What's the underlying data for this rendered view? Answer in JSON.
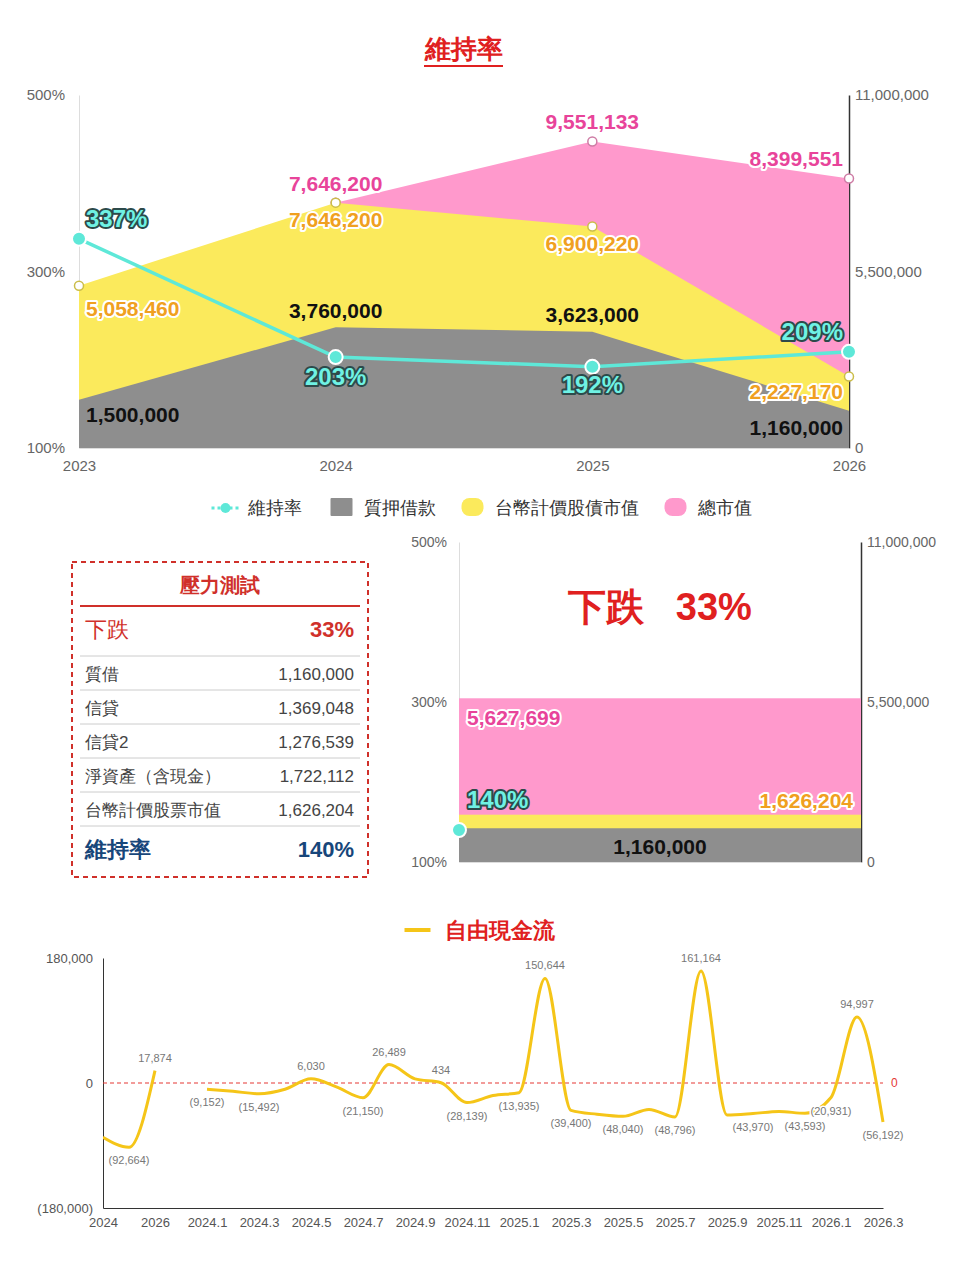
{
  "chart_data": [
    {
      "type": "area",
      "title": "維持率",
      "categories": [
        "2023",
        "2024",
        "2025",
        "2026"
      ],
      "series": [
        {
          "name": "維持率",
          "type": "line",
          "color": "#5ee8d8",
          "marker": "circle",
          "axis": "y",
          "values": [
            337,
            203,
            192,
            209
          ],
          "value_labels": [
            "337%",
            "203%",
            "192%",
            "209%"
          ]
        },
        {
          "name": "質押借款",
          "type": "area",
          "color": "#8e8e8e",
          "axis": "y2",
          "values": [
            1500000,
            3760000,
            3623000,
            1160000
          ],
          "value_labels": [
            "1,500,000",
            "3,760,000",
            "3,623,000",
            "1,160,000"
          ]
        },
        {
          "name": "台幣計價股債市值",
          "type": "area",
          "color": "#fbea5c",
          "marker": "circle",
          "axis": "y2",
          "values": [
            5058460,
            7646200,
            6900220,
            2227170
          ],
          "value_labels": [
            "5,058,460",
            "7,646,200",
            "6,900,220",
            "2,227,170"
          ]
        },
        {
          "name": "總市值",
          "type": "area",
          "color": "#ff99cc",
          "marker": "circle",
          "axis": "y2",
          "values": [
            null,
            7646200,
            9551133,
            8399551
          ],
          "value_labels": [
            null,
            "7,646,200",
            "9,551,133",
            "8,399,551"
          ]
        }
      ],
      "ylim": [
        100,
        500
      ],
      "yticks": [
        {
          "value": 100,
          "label": "100%"
        },
        {
          "value": 300,
          "label": "300%"
        },
        {
          "value": 500,
          "label": "500%"
        }
      ],
      "y2lim": [
        0,
        11000000
      ],
      "y2ticks": [
        0,
        {
          "value": 5500000,
          "label": "5,500,000"
        },
        {
          "value": 11000000,
          "label": "11,000,000"
        }
      ],
      "legend": "bottom",
      "data_labels": true
    },
    {
      "type": "area",
      "title": "下跌   33%",
      "categories": [
        null
      ],
      "series": [
        {
          "type": "line",
          "color": "#5ee8d8",
          "marker": "circle",
          "axis": "y",
          "values": [
            140
          ],
          "value_labels": [
            "140%"
          ]
        },
        {
          "type": "area",
          "color": "#8e8e8e",
          "axis": "y2",
          "values": [
            1160000
          ],
          "value_labels": [
            "1,160,000"
          ]
        },
        {
          "type": "area",
          "color": "#fbea5c",
          "axis": "y2",
          "values": [
            1626204
          ],
          "value_labels": [
            "1,626,204"
          ]
        },
        {
          "type": "area",
          "color": "#ff99cc",
          "axis": "y2",
          "values": [
            5627699
          ],
          "value_labels": [
            "5,627,699"
          ]
        }
      ],
      "ylim": [
        100,
        500
      ],
      "yticks": [
        {
          "value": 100,
          "label": "100%"
        },
        {
          "value": 300,
          "label": "300%"
        },
        {
          "value": 500,
          "label": "500%"
        }
      ],
      "y2lim": [
        0,
        11000000
      ],
      "y2ticks": [
        0,
        {
          "value": 5500000,
          "label": "5,500,000"
        },
        {
          "value": 11000000,
          "label": "11,000,000"
        }
      ],
      "data_labels": true
    },
    {
      "type": "line",
      "categories": [
        "2024",
        null,
        "2026",
        null,
        "2024.1",
        null,
        "2024.3",
        null,
        "2024.5",
        null,
        "2024.7",
        null,
        "2024.9",
        null,
        "2024.11",
        null,
        "2025.1",
        null,
        "2025.3",
        null,
        "2025.5",
        null,
        "2025.7",
        null,
        "2025.9",
        null,
        "2025.11",
        null,
        "2026.1",
        null,
        "2026.3"
      ],
      "series": [
        {
          "name": "自由現金流",
          "color": "#f5c518",
          "values": [
            -78000,
            -92664,
            17874,
            null,
            -9152,
            -12000,
            -15492,
            -9000,
            6030,
            -6000,
            -21150,
            26489,
            6000,
            434,
            -28139,
            -18000,
            -13935,
            150644,
            -39400,
            -45000,
            -48040,
            -38000,
            -48796,
            161164,
            -46000,
            -43970,
            -41000,
            -43593,
            -20931,
            94997,
            -56192
          ],
          "value_labels": [
            null,
            "(92,664)",
            "17,874",
            null,
            "(9,152)",
            null,
            "(15,492)",
            null,
            "6,030",
            null,
            "(21,150)",
            "26,489",
            null,
            "434",
            "(28,139)",
            null,
            "(13,935)",
            "150,644",
            "(39,400)",
            null,
            "(48,040)",
            null,
            "(48,796)",
            "161,164",
            null,
            "(43,970)",
            null,
            "(43,593)",
            "(20,931)",
            "94,997",
            "(56,192)"
          ]
        }
      ],
      "ylim": [
        -180000,
        180000
      ],
      "yticks": [
        {
          "value": -180000,
          "label": "(180,000)"
        },
        0,
        {
          "value": 180000,
          "label": "180,000"
        }
      ],
      "annotations": [
        {
          "value": 0,
          "label": "0"
        }
      ],
      "legend": "top",
      "data_labels": true
    }
  ],
  "table": {
    "title": "壓力測試",
    "rows": [
      [
        "下跌",
        "33%"
      ],
      [
        "質借",
        "1,160,000"
      ],
      [
        "信貸",
        "1,369,048"
      ],
      [
        "信貸2",
        "1,276,539"
      ],
      [
        "淨資產（含現金）",
        "1,722,112"
      ],
      [
        "台幣計價股票市值",
        "1,626,204"
      ],
      [
        "維持率",
        "140%"
      ]
    ]
  }
}
